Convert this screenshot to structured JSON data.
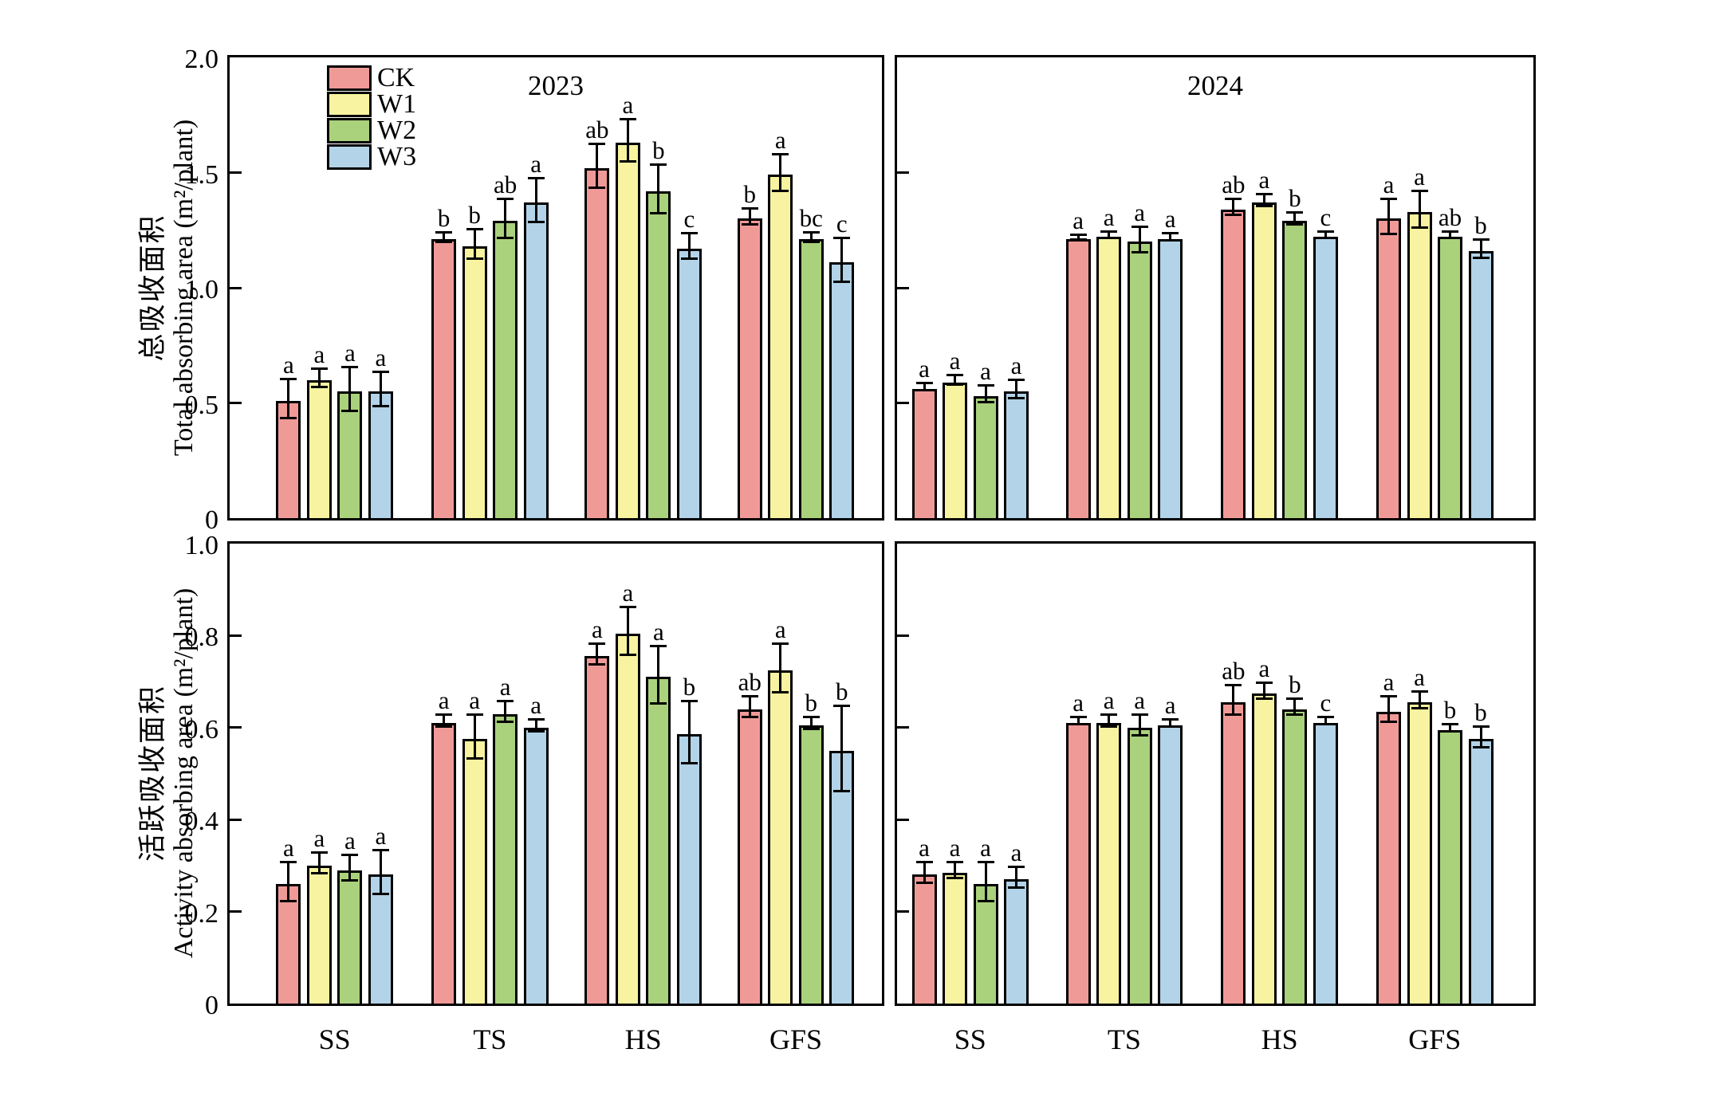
{
  "figure": {
    "legend": [
      "CK",
      "W1",
      "W2",
      "W3"
    ],
    "series_colors": {
      "CK": "#F09A98",
      "W1": "#F7F3A0",
      "W2": "#AAD17C",
      "W3": "#B2D3E8"
    },
    "categories": [
      "SS",
      "TS",
      "HS",
      "GFS"
    ],
    "axis_color": "#000000",
    "background_color": "#FFFFFF"
  },
  "chart_data": [
    {
      "type": "bar",
      "panel": "top-left",
      "title": "2023",
      "ylabel_zh": "总吸收面积",
      "ylabel_en": "Total absorbing area (m²/plant)",
      "ylim": [
        0,
        2.0
      ],
      "yticks": [
        0,
        0.5,
        1.0,
        1.5,
        2.0
      ],
      "grid": false,
      "legend_position": "upper-left-inside",
      "categories": [
        "SS",
        "TS",
        "HS",
        "GFS"
      ],
      "series": [
        {
          "name": "CK",
          "values": [
            0.51,
            1.21,
            1.52,
            1.3
          ],
          "errors": [
            0.08,
            0.015,
            0.09,
            0.03
          ],
          "sig_letters": [
            "a",
            "b",
            "ab",
            "b"
          ]
        },
        {
          "name": "W1",
          "values": [
            0.6,
            1.18,
            1.63,
            1.49
          ],
          "errors": [
            0.035,
            0.06,
            0.085,
            0.075
          ],
          "sig_letters": [
            "a",
            "b",
            "a",
            "a"
          ]
        },
        {
          "name": "W2",
          "values": [
            0.55,
            1.29,
            1.42,
            1.21
          ],
          "errors": [
            0.09,
            0.08,
            0.1,
            0.015
          ],
          "sig_letters": [
            "a",
            "ab",
            "b",
            "bc"
          ]
        },
        {
          "name": "W3",
          "values": [
            0.55,
            1.37,
            1.17,
            1.11
          ],
          "errors": [
            0.07,
            0.09,
            0.05,
            0.09
          ],
          "sig_letters": [
            "a",
            "a",
            "c",
            "c"
          ]
        }
      ]
    },
    {
      "type": "bar",
      "panel": "top-right",
      "title": "2024",
      "ylim": [
        0,
        2.0
      ],
      "yticks": [
        0,
        0.5,
        1.0,
        1.5,
        2.0
      ],
      "grid": false,
      "categories": [
        "SS",
        "TS",
        "HS",
        "GFS"
      ],
      "series": [
        {
          "name": "CK",
          "values": [
            0.56,
            1.21,
            1.34,
            1.3
          ],
          "errors": [
            0.01,
            0.005,
            0.03,
            0.07
          ],
          "sig_letters": [
            "a",
            "a",
            "ab",
            "a"
          ]
        },
        {
          "name": "W1",
          "values": [
            0.59,
            1.22,
            1.37,
            1.33
          ],
          "errors": [
            0.015,
            0.01,
            0.02,
            0.075
          ],
          "sig_letters": [
            "a",
            "a",
            "a",
            "a"
          ]
        },
        {
          "name": "W2",
          "values": [
            0.53,
            1.2,
            1.29,
            1.22
          ],
          "errors": [
            0.03,
            0.05,
            0.02,
            0.01
          ],
          "sig_letters": [
            "a",
            "a",
            "b",
            "ab"
          ]
        },
        {
          "name": "W3",
          "values": [
            0.55,
            1.21,
            1.22,
            1.16
          ],
          "errors": [
            0.035,
            0.01,
            0.01,
            0.035
          ],
          "sig_letters": [
            "a",
            "a",
            "c",
            "b"
          ]
        }
      ]
    },
    {
      "type": "bar",
      "panel": "bottom-left",
      "title": "",
      "ylabel_zh": "活跃吸收面积",
      "ylabel_en": "Activity absorbing area (m²/plant)",
      "ylim": [
        0,
        1.0
      ],
      "yticks": [
        0,
        0.2,
        0.4,
        0.6,
        0.8,
        1.0
      ],
      "grid": false,
      "categories": [
        "SS",
        "TS",
        "HS",
        "GFS"
      ],
      "series": [
        {
          "name": "CK",
          "values": [
            0.26,
            0.61,
            0.755,
            0.64
          ],
          "errors": [
            0.04,
            0.01,
            0.02,
            0.02
          ],
          "sig_letters": [
            "a",
            "a",
            "a",
            "ab"
          ]
        },
        {
          "name": "W1",
          "values": [
            0.3,
            0.575,
            0.805,
            0.725
          ],
          "errors": [
            0.02,
            0.045,
            0.05,
            0.05
          ],
          "sig_letters": [
            "a",
            "a",
            "a",
            "a"
          ]
        },
        {
          "name": "W2",
          "values": [
            0.29,
            0.63,
            0.71,
            0.605
          ],
          "errors": [
            0.025,
            0.02,
            0.06,
            0.01
          ],
          "sig_letters": [
            "a",
            "a",
            "a",
            "b"
          ]
        },
        {
          "name": "W3",
          "values": [
            0.28,
            0.6,
            0.585,
            0.55
          ],
          "errors": [
            0.045,
            0.01,
            0.065,
            0.09
          ],
          "sig_letters": [
            "a",
            "a",
            "b",
            "b"
          ]
        }
      ]
    },
    {
      "type": "bar",
      "panel": "bottom-right",
      "title": "",
      "ylim": [
        0,
        1.0
      ],
      "yticks": [
        0,
        0.2,
        0.4,
        0.6,
        0.8,
        1.0
      ],
      "grid": false,
      "categories": [
        "SS",
        "TS",
        "HS",
        "GFS"
      ],
      "series": [
        {
          "name": "CK",
          "values": [
            0.28,
            0.61,
            0.655,
            0.635
          ],
          "errors": [
            0.02,
            0.005,
            0.03,
            0.025
          ],
          "sig_letters": [
            "a",
            "a",
            "ab",
            "a"
          ]
        },
        {
          "name": "W1",
          "values": [
            0.285,
            0.61,
            0.675,
            0.655
          ],
          "errors": [
            0.015,
            0.01,
            0.015,
            0.015
          ],
          "sig_letters": [
            "a",
            "a",
            "a",
            "a"
          ]
        },
        {
          "name": "W2",
          "values": [
            0.26,
            0.6,
            0.64,
            0.595
          ],
          "errors": [
            0.04,
            0.02,
            0.015,
            0.005
          ],
          "sig_letters": [
            "a",
            "a",
            "b",
            "b"
          ]
        },
        {
          "name": "W3",
          "values": [
            0.27,
            0.605,
            0.61,
            0.575
          ],
          "errors": [
            0.02,
            0.005,
            0.005,
            0.02
          ],
          "sig_letters": [
            "a",
            "a",
            "c",
            "b"
          ]
        }
      ]
    }
  ]
}
